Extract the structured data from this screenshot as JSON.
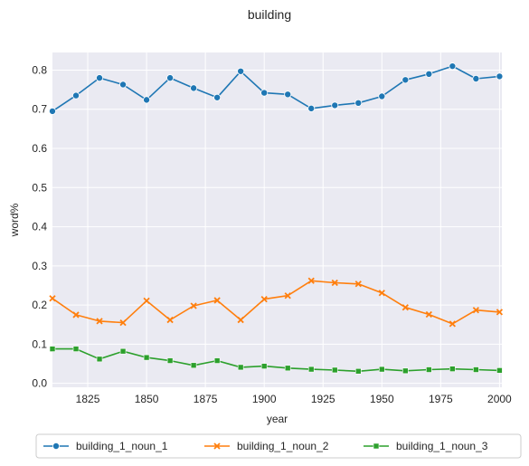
{
  "chart_data": {
    "type": "line",
    "title": "building",
    "xlabel": "year",
    "ylabel": "word%",
    "xlim": [
      1810,
      2001
    ],
    "ylim": [
      -0.01,
      0.845
    ],
    "xticks": [
      1825,
      1850,
      1875,
      1900,
      1925,
      1950,
      1975,
      2000
    ],
    "yticks": [
      0.0,
      0.1,
      0.2,
      0.3,
      0.4,
      0.5,
      0.6,
      0.7,
      0.8
    ],
    "grid": true,
    "legend_position": "bottom",
    "x": [
      1810,
      1820,
      1830,
      1840,
      1850,
      1860,
      1870,
      1880,
      1890,
      1900,
      1910,
      1920,
      1930,
      1940,
      1950,
      1960,
      1970,
      1980,
      1990,
      2000
    ],
    "series": [
      {
        "name": "building_1_noun_1",
        "color": "#1f77b4",
        "marker": "circle",
        "values": [
          0.695,
          0.735,
          0.78,
          0.763,
          0.724,
          0.78,
          0.754,
          0.73,
          0.797,
          0.742,
          0.738,
          0.702,
          0.71,
          0.716,
          0.733,
          0.775,
          0.79,
          0.81,
          0.778,
          0.784
        ]
      },
      {
        "name": "building_1_noun_2",
        "color": "#ff7f0e",
        "marker": "x",
        "values": [
          0.217,
          0.175,
          0.159,
          0.155,
          0.211,
          0.162,
          0.198,
          0.212,
          0.162,
          0.215,
          0.224,
          0.262,
          0.257,
          0.254,
          0.231,
          0.194,
          0.176,
          0.152,
          0.187,
          0.182
        ]
      },
      {
        "name": "building_1_noun_3",
        "color": "#2ca02c",
        "marker": "square",
        "values": [
          0.088,
          0.088,
          0.062,
          0.082,
          0.066,
          0.058,
          0.046,
          0.058,
          0.041,
          0.044,
          0.039,
          0.036,
          0.034,
          0.031,
          0.036,
          0.032,
          0.035,
          0.037,
          0.035,
          0.033
        ]
      }
    ]
  }
}
